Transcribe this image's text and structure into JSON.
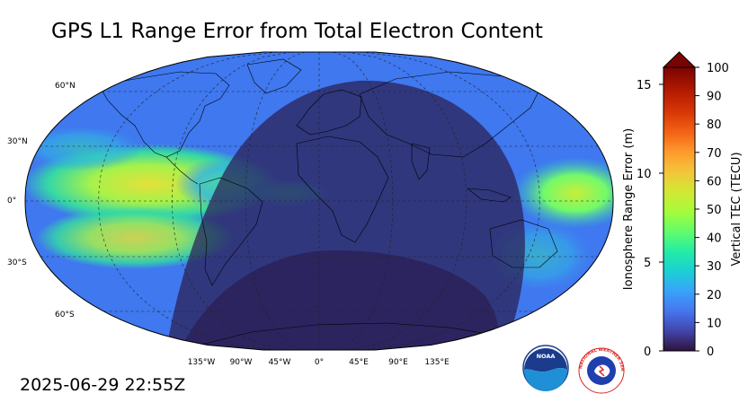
{
  "title": "GPS L1 Range Error from Total Electron Content",
  "timestamp": "2025-06-29 22:55Z",
  "map": {
    "projection": "robinson",
    "latitude_labels": [
      "60°N",
      "30°N",
      "0°",
      "30°S",
      "60°S"
    ],
    "longitude_labels": [
      "135°W",
      "90°W",
      "45°W",
      "0°",
      "45°E",
      "90°E",
      "135°E"
    ],
    "gridlines": "dashed",
    "night_side": "shaded"
  },
  "colorbar": {
    "left_axis_title": "Ionosphere Range Error (m)",
    "left_ticks": [
      "0",
      "5",
      "10",
      "15"
    ],
    "right_axis_title": "Vertical TEC (TECU)",
    "right_ticks": [
      "0",
      "10",
      "20",
      "30",
      "40",
      "50",
      "60",
      "70",
      "80",
      "90",
      "100"
    ],
    "extend": "max",
    "colormap": "turbo"
  },
  "logos": {
    "noaa_text": "NOAA",
    "nws_text": "NATIONAL WEATHER SERVICE"
  }
}
